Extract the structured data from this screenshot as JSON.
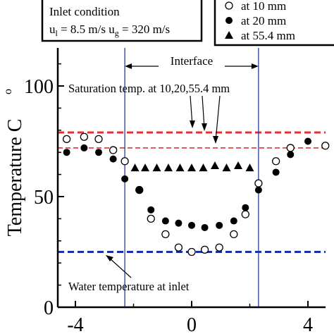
{
  "chart_data": {
    "type": "scatter",
    "ylabel": "Temperature C",
    "ylabel_degree": "o",
    "xlabel": "",
    "xlim": [
      -5,
      4.8
    ],
    "ylim": [
      0,
      120
    ],
    "xticks": [
      "-4",
      "0",
      "4"
    ],
    "xtick_values": [
      -4,
      0,
      4
    ],
    "yticks": [
      "0",
      "50",
      "100"
    ],
    "ytick_values": [
      0,
      50,
      100
    ],
    "inlet_box": {
      "title": "Inlet condition",
      "velocities": "u_l = 8.5 m/s  u_g = 320 m/s"
    },
    "series": [
      {
        "name": "at 10 mm",
        "marker": "open-circle",
        "x": [
          -4.3,
          -3.7,
          -3.2,
          -2.7,
          -2.3,
          -1.8,
          -1.4,
          -0.9,
          -0.45,
          0.0,
          0.45,
          0.95,
          1.45,
          1.85,
          2.3,
          2.9,
          3.4,
          4.6
        ],
        "y": [
          76,
          77,
          76,
          71,
          66,
          53,
          40,
          33,
          27,
          25,
          26,
          27,
          33,
          42,
          56,
          66,
          72,
          73
        ]
      },
      {
        "name": "at 20 mm",
        "marker": "filled-circle",
        "x": [
          -4.3,
          -3.7,
          -3.2,
          -2.7,
          -2.3,
          -1.8,
          -1.4,
          -0.9,
          -0.45,
          0.0,
          0.45,
          0.95,
          1.45,
          1.85,
          2.3,
          2.9,
          3.4,
          4.0
        ],
        "y": [
          70,
          72,
          70,
          67,
          58,
          53,
          44,
          39,
          38,
          37,
          36,
          37,
          39,
          45,
          53,
          61,
          69,
          75
        ]
      },
      {
        "name": "at 55.4 mm",
        "marker": "filled-triangle",
        "x": [
          -1.95,
          -1.6,
          -1.2,
          -0.8,
          -0.4,
          0.0,
          0.4,
          0.8,
          1.2,
          1.6,
          2.0
        ],
        "y": [
          63,
          63,
          63,
          63,
          63,
          63,
          63,
          64,
          63,
          64,
          63
        ]
      }
    ],
    "legend": {
      "placement": "top-right",
      "entries": [
        "at 10 mm",
        "at 20 mm",
        "at 55.4 mm"
      ]
    },
    "hlines": [
      {
        "y": 79,
        "color": "#e53030",
        "style": "thick-dashed"
      },
      {
        "y": 72,
        "color": "#e53030",
        "style": "thin-dashed"
      },
      {
        "y": 25,
        "color": "#1a2fa8",
        "style": "thick-dashed"
      }
    ],
    "vlines": [
      {
        "x": -2.3,
        "color": "#2a3aa0"
      },
      {
        "x": 2.3,
        "color": "#2a3aa0"
      }
    ],
    "annotations": {
      "interface": "Interface",
      "saturation": "Saturation temp. at 10,20,55.4 mm",
      "water": "Water temperature at inlet"
    }
  }
}
